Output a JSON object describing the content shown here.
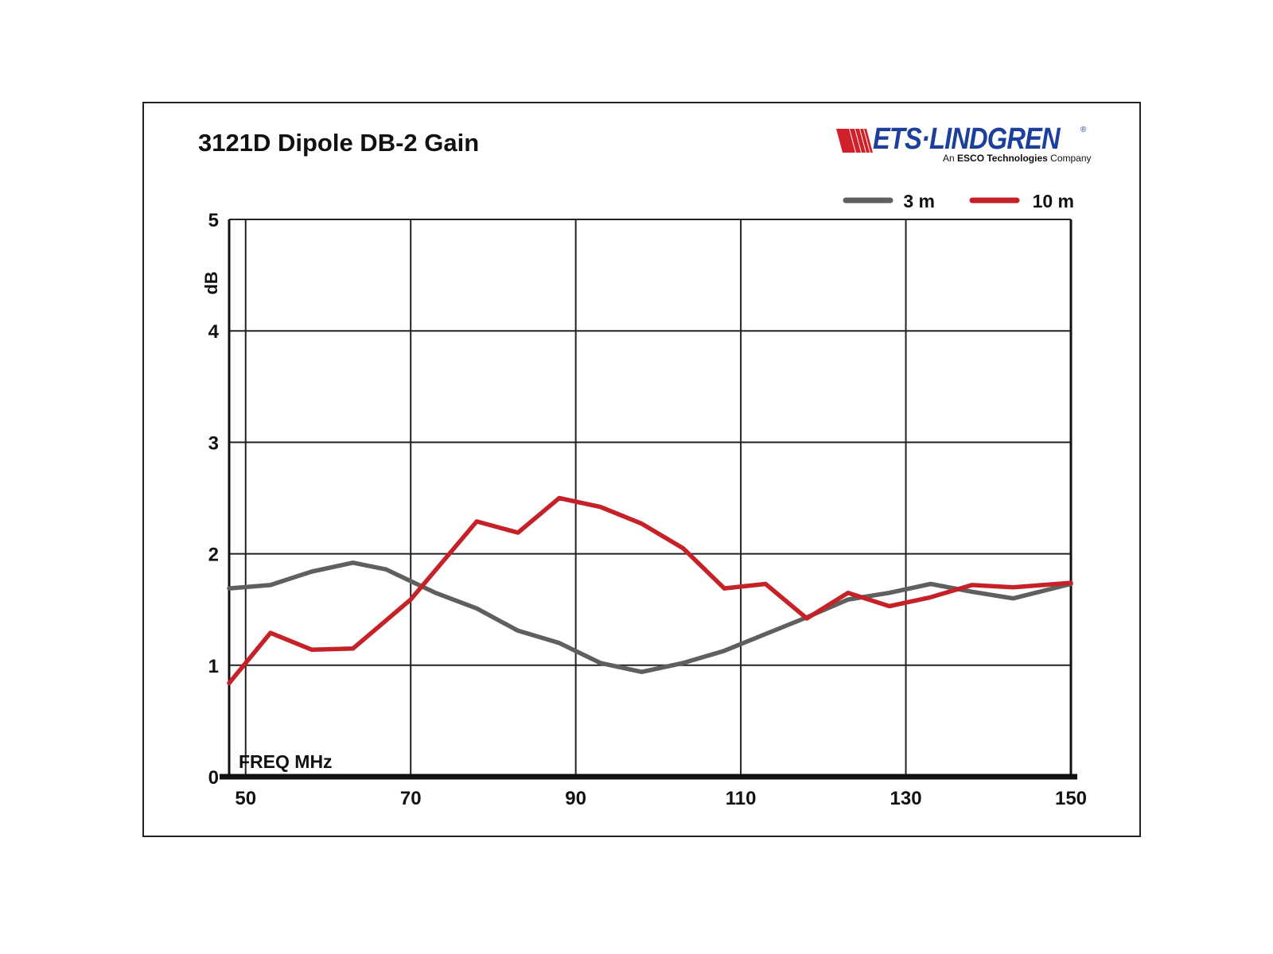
{
  "logo": {
    "name": "ETS·LINDGREN",
    "tagline_prefix": "An ",
    "tagline_bold": "ESCO Technologies",
    "tagline_suffix": " Company",
    "reg": "®",
    "colors": {
      "text": "#1b3f9b",
      "stripes": "#d0202a"
    }
  },
  "chart_data": {
    "type": "line",
    "title": "3121D Dipole DB-2 Gain",
    "xlabel": "FREQ  MHz",
    "ylabel": "dB",
    "xlim": [
      48,
      150
    ],
    "ylim": [
      0,
      5
    ],
    "xticks": [
      50,
      70,
      90,
      110,
      130,
      150
    ],
    "yticks": [
      0,
      1,
      2,
      3,
      4,
      5
    ],
    "grid": true,
    "legend_position": "top-right",
    "series": [
      {
        "name": "3 m",
        "color": "#5f5f5f",
        "x": [
          48,
          53,
          58,
          63,
          67,
          73,
          78,
          83,
          88,
          93,
          98,
          103,
          108,
          113,
          118,
          123,
          128,
          133,
          138,
          143,
          150
        ],
        "values": [
          1.69,
          1.72,
          1.84,
          1.92,
          1.86,
          1.65,
          1.51,
          1.31,
          1.2,
          1.02,
          0.94,
          1.02,
          1.13,
          1.28,
          1.43,
          1.59,
          1.65,
          1.73,
          1.66,
          1.6,
          1.73
        ]
      },
      {
        "name": "10 m",
        "color": "#c62127",
        "x": [
          48,
          53,
          58,
          63,
          70,
          78,
          83,
          88,
          93,
          98,
          103,
          108,
          113,
          118,
          123,
          128,
          133,
          138,
          143,
          150
        ],
        "values": [
          0.84,
          1.29,
          1.14,
          1.15,
          1.59,
          2.29,
          2.19,
          2.5,
          2.42,
          2.27,
          2.05,
          1.69,
          1.73,
          1.42,
          1.65,
          1.53,
          1.61,
          1.72,
          1.7,
          1.74
        ]
      }
    ]
  }
}
